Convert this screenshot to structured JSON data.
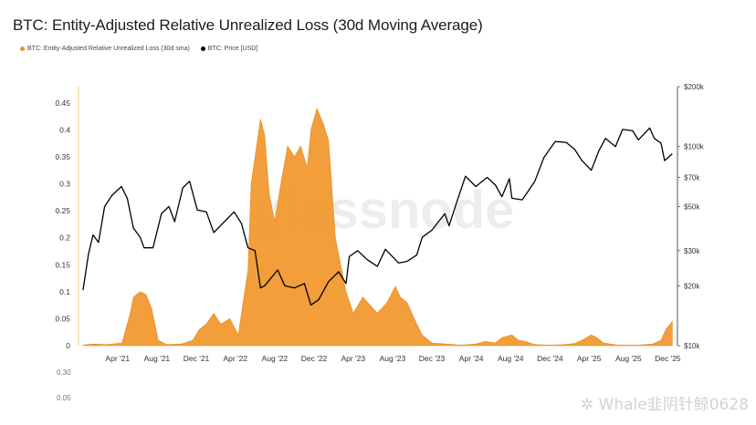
{
  "chart_data": {
    "type": "area",
    "title": "BTC: Entity-Adjusted Relative Unrealized Loss (30d Moving Average)",
    "legend": [
      {
        "label": "BTC: Entity-Adjusted Relative Unrealized Loss (30d sma)",
        "color": "#f0962a"
      },
      {
        "label": "BTC: Price [USD]",
        "color": "#000000"
      }
    ],
    "x_ticks": [
      "Apr '21",
      "Aug '21",
      "Dec '21",
      "Apr '22",
      "Aug '22",
      "Dec '22",
      "Apr '23",
      "Aug '23",
      "Dec '23",
      "Apr '24",
      "Aug '24",
      "Dec '24",
      "Apr '25",
      "Aug '25",
      "Dec '25"
    ],
    "y_left_ticks": [
      "0",
      "0.05",
      "0.1",
      "0.15",
      "0.2",
      "0.25",
      "0.3",
      "0.35",
      "0.4",
      "0.45"
    ],
    "y_right_ticks": [
      "$10k",
      "$20k",
      "$30k",
      "$50k",
      "$70k",
      "$100k",
      "$200k"
    ],
    "ylim_left": [
      0,
      0.48
    ],
    "ylim_right": [
      10000,
      200000
    ],
    "y_right_scale": "log",
    "grid": false,
    "legend_position": "top-left",
    "series": [
      {
        "name": "BTC: Entity-Adjusted Relative Unrealized Loss (30d sma)",
        "color": "#f0962a",
        "x": [
          "2020-12-15",
          "2021-01-15",
          "2021-03-01",
          "2021-04-15",
          "2021-05-10",
          "2021-05-20",
          "2021-06-10",
          "2021-06-28",
          "2021-07-15",
          "2021-08-05",
          "2021-09-01",
          "2021-10-15",
          "2021-11-20",
          "2021-12-10",
          "2022-01-01",
          "2022-01-24",
          "2022-02-15",
          "2022-03-15",
          "2022-04-10",
          "2022-05-10",
          "2022-05-20",
          "2022-06-18",
          "2022-07-01",
          "2022-07-15",
          "2022-08-01",
          "2022-08-20",
          "2022-09-10",
          "2022-10-01",
          "2022-10-20",
          "2022-11-10",
          "2022-11-21",
          "2022-12-10",
          "2022-12-30",
          "2023-01-15",
          "2023-02-05",
          "2023-03-10",
          "2023-04-01",
          "2023-05-01",
          "2023-06-15",
          "2023-07-15",
          "2023-08-10",
          "2023-08-25",
          "2023-09-15",
          "2023-10-15",
          "2023-11-01",
          "2023-12-01",
          "2024-01-15",
          "2024-03-01",
          "2024-04-15",
          "2024-05-15",
          "2024-06-15",
          "2024-07-05",
          "2024-08-05",
          "2024-08-25",
          "2024-09-15",
          "2024-10-15",
          "2024-12-01",
          "2025-01-15",
          "2025-02-15",
          "2025-03-10",
          "2025-04-08",
          "2025-04-25",
          "2025-05-15",
          "2025-07-01",
          "2025-09-01",
          "2025-10-15",
          "2025-11-10",
          "2025-11-25",
          "2025-12-15"
        ],
        "values": [
          0.001,
          0.003,
          0.002,
          0.005,
          0.06,
          0.09,
          0.1,
          0.095,
          0.07,
          0.01,
          0.002,
          0.003,
          0.01,
          0.03,
          0.04,
          0.06,
          0.04,
          0.05,
          0.02,
          0.14,
          0.3,
          0.42,
          0.39,
          0.28,
          0.23,
          0.3,
          0.37,
          0.35,
          0.37,
          0.33,
          0.4,
          0.44,
          0.41,
          0.38,
          0.2,
          0.1,
          0.06,
          0.09,
          0.06,
          0.08,
          0.11,
          0.09,
          0.08,
          0.04,
          0.02,
          0.005,
          0.003,
          0.001,
          0.003,
          0.008,
          0.005,
          0.015,
          0.02,
          0.01,
          0.008,
          0.002,
          0.001,
          0.002,
          0.004,
          0.01,
          0.02,
          0.015,
          0.005,
          0.001,
          0.001,
          0.003,
          0.01,
          0.03,
          0.045
        ]
      },
      {
        "name": "BTC: Price [USD]",
        "color": "#000000",
        "x": [
          "2020-12-15",
          "2021-01-01",
          "2021-01-15",
          "2021-02-01",
          "2021-02-20",
          "2021-03-15",
          "2021-04-13",
          "2021-05-01",
          "2021-05-20",
          "2021-06-10",
          "2021-06-22",
          "2021-07-20",
          "2021-08-15",
          "2021-09-07",
          "2021-09-25",
          "2021-10-20",
          "2021-11-10",
          "2021-12-04",
          "2022-01-01",
          "2022-01-24",
          "2022-03-28",
          "2022-04-20",
          "2022-05-10",
          "2022-06-01",
          "2022-06-18",
          "2022-07-01",
          "2022-08-10",
          "2022-09-01",
          "2022-10-01",
          "2022-11-01",
          "2022-11-21",
          "2022-12-15",
          "2023-01-15",
          "2023-02-15",
          "2023-03-10",
          "2023-03-20",
          "2023-04-15",
          "2023-05-15",
          "2023-06-15",
          "2023-07-10",
          "2023-08-20",
          "2023-09-15",
          "2023-10-15",
          "2023-11-01",
          "2023-12-01",
          "2024-01-10",
          "2024-01-23",
          "2024-02-15",
          "2024-03-14",
          "2024-04-15",
          "2024-05-20",
          "2024-06-15",
          "2024-07-05",
          "2024-07-28",
          "2024-08-05",
          "2024-09-06",
          "2024-10-15",
          "2024-11-12",
          "2024-12-17",
          "2025-01-20",
          "2025-02-15",
          "2025-03-10",
          "2025-04-08",
          "2025-05-01",
          "2025-05-22",
          "2025-06-22",
          "2025-07-14",
          "2025-08-14",
          "2025-09-01",
          "2025-10-06",
          "2025-10-20",
          "2025-11-10",
          "2025-11-21",
          "2025-12-15"
        ],
        "values": [
          19000,
          29000,
          36000,
          33000,
          50000,
          57000,
          63000,
          55000,
          39000,
          35000,
          31000,
          31000,
          46000,
          50000,
          42000,
          62000,
          67000,
          48000,
          47000,
          37000,
          47000,
          41000,
          31000,
          30000,
          19500,
          20000,
          24000,
          20000,
          19500,
          20500,
          16000,
          17000,
          21000,
          23500,
          20500,
          28000,
          30000,
          27000,
          25000,
          30500,
          26000,
          26500,
          28500,
          35000,
          38000,
          46000,
          40000,
          52000,
          71000,
          63000,
          70000,
          64000,
          56000,
          69000,
          55000,
          54000,
          67000,
          88000,
          106000,
          105000,
          97000,
          85000,
          76000,
          95000,
          110000,
          100000,
          122000,
          120000,
          108000,
          124000,
          110000,
          104000,
          85000,
          92000
        ]
      }
    ]
  },
  "watermark": "✲ Whale韭阴针鲸0628",
  "cutoff_labels": [
    "0.30",
    "0.05"
  ]
}
